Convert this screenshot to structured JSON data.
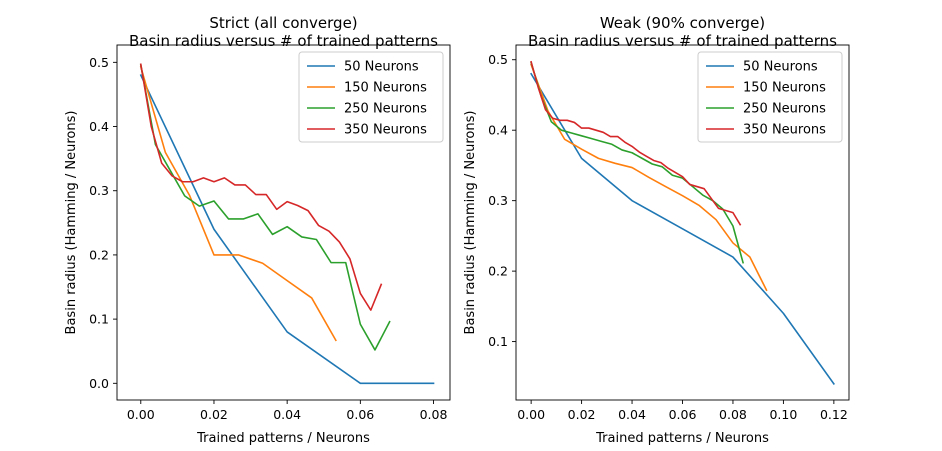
{
  "chart_data": [
    {
      "type": "line",
      "title": "Strict (all converge)",
      "subtitle": "Basin radius versus # of trained patterns",
      "xlabel": "Trained patterns / Neurons",
      "ylabel": "Basin radius (Hamming / Neurons)",
      "xlim": [
        -0.0065,
        0.0845
      ],
      "ylim": [
        -0.026,
        0.527
      ],
      "xticks": [
        "0.00",
        "0.02",
        "0.04",
        "0.06",
        "0.08"
      ],
      "yticks": [
        "0.0",
        "0.1",
        "0.2",
        "0.3",
        "0.4",
        "0.5"
      ],
      "grid": false,
      "legend": "top-right",
      "series": [
        {
          "name": "50 Neurons",
          "color": "#1f77b4",
          "x": [
            0.0,
            0.02,
            0.04,
            0.06,
            0.08
          ],
          "y": [
            0.48,
            0.24,
            0.08,
            0.0,
            0.0
          ]
        },
        {
          "name": "150 Neurons",
          "color": "#ff7f0e",
          "x": [
            0.0,
            0.0067,
            0.0133,
            0.02,
            0.0267,
            0.0333,
            0.04,
            0.0467,
            0.0533
          ],
          "y": [
            0.493,
            0.36,
            0.293,
            0.2,
            0.2,
            0.187,
            0.16,
            0.133,
            0.067
          ]
        },
        {
          "name": "250 Neurons",
          "color": "#2ca02c",
          "x": [
            0.0,
            0.004,
            0.008,
            0.012,
            0.016,
            0.02,
            0.024,
            0.028,
            0.032,
            0.036,
            0.04,
            0.044,
            0.048,
            0.052,
            0.056,
            0.06,
            0.064,
            0.068
          ],
          "y": [
            0.496,
            0.372,
            0.332,
            0.292,
            0.276,
            0.284,
            0.256,
            0.256,
            0.264,
            0.232,
            0.244,
            0.228,
            0.224,
            0.188,
            0.188,
            0.092,
            0.052,
            0.096
          ]
        },
        {
          "name": "350 Neurons",
          "color": "#d62728",
          "x": [
            0.0,
            0.00286,
            0.00571,
            0.00857,
            0.01143,
            0.01429,
            0.01714,
            0.02,
            0.02286,
            0.02571,
            0.02857,
            0.03143,
            0.03429,
            0.03714,
            0.04,
            0.04286,
            0.04571,
            0.04857,
            0.05143,
            0.05429,
            0.05714,
            0.06,
            0.06286,
            0.06571
          ],
          "y": [
            0.497,
            0.4,
            0.343,
            0.323,
            0.314,
            0.314,
            0.32,
            0.314,
            0.32,
            0.309,
            0.309,
            0.294,
            0.294,
            0.271,
            0.283,
            0.277,
            0.269,
            0.246,
            0.237,
            0.22,
            0.194,
            0.14,
            0.114,
            0.154
          ]
        }
      ]
    },
    {
      "type": "line",
      "title": "Weak (90% converge)",
      "subtitle": "Basin radius versus # of trained patterns",
      "xlabel": "Trained patterns / Neurons",
      "ylabel": "Basin radius (Hamming / Neurons)",
      "xlim": [
        -0.006,
        0.126
      ],
      "ylim": [
        0.0171,
        0.5209
      ],
      "xticks": [
        "0.00",
        "0.02",
        "0.04",
        "0.06",
        "0.08",
        "0.10",
        "0.12"
      ],
      "yticks": [
        "0.1",
        "0.2",
        "0.3",
        "0.4",
        "0.5"
      ],
      "grid": false,
      "legend": "top-right",
      "series": [
        {
          "name": "50 Neurons",
          "color": "#1f77b4",
          "x": [
            0.0,
            0.02,
            0.04,
            0.06,
            0.08,
            0.1,
            0.12
          ],
          "y": [
            0.48,
            0.36,
            0.3,
            0.26,
            0.22,
            0.14,
            0.04
          ]
        },
        {
          "name": "150 Neurons",
          "color": "#ff7f0e",
          "x": [
            0.0,
            0.0067,
            0.0133,
            0.02,
            0.0267,
            0.0333,
            0.04,
            0.0467,
            0.0533,
            0.06,
            0.0667,
            0.0733,
            0.08,
            0.0867,
            0.0933
          ],
          "y": [
            0.493,
            0.427,
            0.387,
            0.373,
            0.36,
            0.353,
            0.347,
            0.333,
            0.32,
            0.307,
            0.293,
            0.273,
            0.24,
            0.22,
            0.173
          ]
        },
        {
          "name": "250 Neurons",
          "color": "#2ca02c",
          "x": [
            0.0,
            0.004,
            0.008,
            0.012,
            0.016,
            0.02,
            0.024,
            0.028,
            0.032,
            0.036,
            0.04,
            0.044,
            0.048,
            0.052,
            0.056,
            0.06,
            0.064,
            0.068,
            0.072,
            0.076,
            0.08,
            0.084
          ],
          "y": [
            0.496,
            0.448,
            0.412,
            0.4,
            0.396,
            0.392,
            0.388,
            0.384,
            0.38,
            0.372,
            0.368,
            0.36,
            0.352,
            0.348,
            0.336,
            0.332,
            0.32,
            0.308,
            0.3,
            0.288,
            0.264,
            0.212
          ]
        },
        {
          "name": "350 Neurons",
          "color": "#d62728",
          "x": [
            0.0,
            0.00286,
            0.00571,
            0.00857,
            0.01143,
            0.01429,
            0.01714,
            0.02,
            0.02286,
            0.02571,
            0.02857,
            0.03143,
            0.03429,
            0.03714,
            0.04,
            0.04286,
            0.04571,
            0.04857,
            0.05143,
            0.05429,
            0.05714,
            0.06,
            0.06286,
            0.06571,
            0.06857,
            0.07143,
            0.07429,
            0.07714,
            0.08,
            0.08286
          ],
          "y": [
            0.497,
            0.46,
            0.429,
            0.417,
            0.414,
            0.414,
            0.411,
            0.403,
            0.403,
            0.4,
            0.397,
            0.391,
            0.391,
            0.383,
            0.377,
            0.369,
            0.363,
            0.357,
            0.354,
            0.346,
            0.34,
            0.334,
            0.323,
            0.32,
            0.317,
            0.303,
            0.289,
            0.286,
            0.283,
            0.266
          ]
        }
      ]
    }
  ]
}
